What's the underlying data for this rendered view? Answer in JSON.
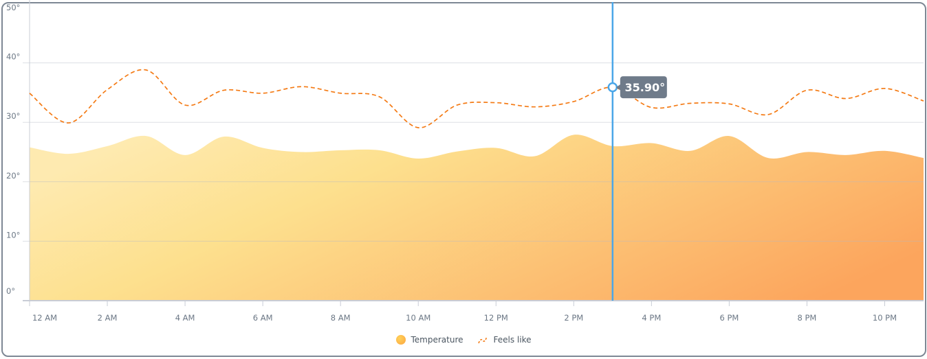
{
  "chart_data": {
    "type": "area",
    "title": "",
    "xlabel": "",
    "ylabel": "",
    "ylim": [
      0,
      50
    ],
    "y_ticks": [
      "0°",
      "10°",
      "20°",
      "30°",
      "40°",
      "50°"
    ],
    "x_ticks": [
      "12 AM",
      "2 AM",
      "4 AM",
      "6 AM",
      "8 AM",
      "10 AM",
      "12 PM",
      "2 PM",
      "4 PM",
      "6 PM",
      "8 PM",
      "10 PM"
    ],
    "x": [
      "12 AM",
      "1 AM",
      "2 AM",
      "3 AM",
      "4 AM",
      "5 AM",
      "6 AM",
      "7 AM",
      "8 AM",
      "9 AM",
      "10 AM",
      "11 AM",
      "12 PM",
      "1 PM",
      "2 PM",
      "3 PM",
      "4 PM",
      "5 PM",
      "6 PM",
      "7 PM",
      "8 PM",
      "9 PM",
      "10 PM",
      "11 PM"
    ],
    "grid": true,
    "legend_position": "bottom-center",
    "series": [
      {
        "name": "Temperature",
        "type": "area",
        "values": [
          25.8,
          24.7,
          26.0,
          27.7,
          24.5,
          27.6,
          25.7,
          25.0,
          25.3,
          25.3,
          23.9,
          25.1,
          25.7,
          24.3,
          27.9,
          26.0,
          26.5,
          25.2,
          27.7,
          24.0,
          25.0,
          24.5,
          25.2,
          24.0
        ]
      },
      {
        "name": "Feels like",
        "type": "line",
        "style": "dashed",
        "values": [
          34.9,
          29.9,
          35.5,
          38.8,
          32.9,
          35.4,
          34.9,
          36.0,
          34.9,
          34.3,
          29.1,
          32.9,
          33.3,
          32.6,
          33.5,
          35.9,
          32.5,
          33.2,
          33.1,
          31.3,
          35.4,
          34.0,
          35.7,
          33.6
        ]
      }
    ],
    "cursor": {
      "index": 15,
      "label": "35.90°"
    },
    "colors": {
      "feels_like": "#f47a14",
      "cursor": "#4aa6e8",
      "tooltip_bg": "#6f7b8a",
      "fill_start": "#feeab0",
      "fill_mid": "#fde08e",
      "fill_end": "#fca55d"
    }
  },
  "legend": {
    "temperature": "Temperature",
    "feels_like": "Feels like"
  }
}
